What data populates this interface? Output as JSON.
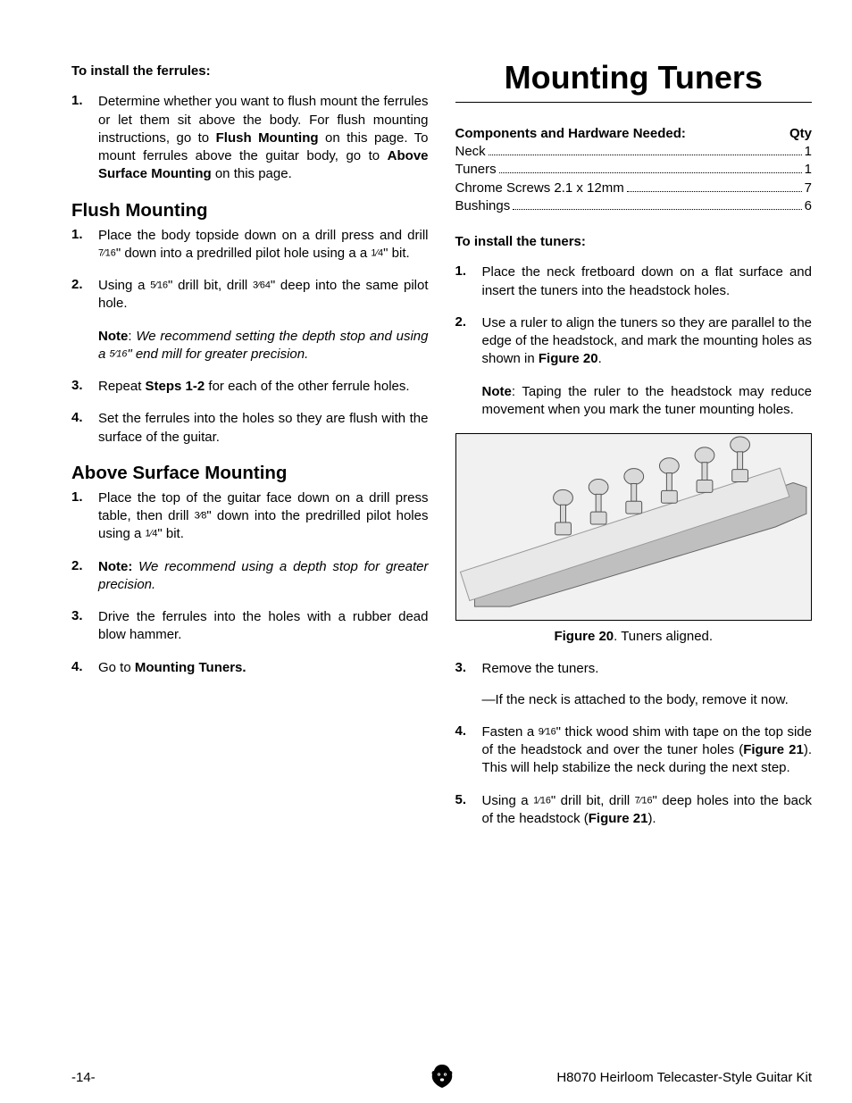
{
  "left": {
    "install_ferrules_heading": "To install the ferrules:",
    "intro_step_num": "1.",
    "intro_step": "Determine whether you want to flush mount the ferrules or let them sit above the body. For flush mounting instructions, go to <b>Flush Mounting</b> on this page. To mount ferrules above the guitar body, go to <b>Above Surface Mounting</b> on this page.",
    "flush_heading": "Flush Mounting",
    "flush_steps": [
      {
        "num": "1.",
        "html": "Place the body topside down on a drill press and drill <span class='frac'>7⁄16</span>\" down into a predrilled pilot hole using a  a <span class='frac'>1⁄4</span>\" bit."
      },
      {
        "num": "2.",
        "html": "Using a <span class='frac'>5⁄16</span>\" drill bit, drill <span class='frac'>3⁄64</span>\" deep into the same pilot hole.",
        "note": "<b>Note</b>: <i>We recommend setting the depth stop and using a <span class='frac'>5⁄16</span>\" end mill for greater precision.</i>"
      },
      {
        "num": "3.",
        "html": "Repeat <b>Steps 1-2</b> for each of the other ferrule holes."
      },
      {
        "num": "4.",
        "html": "Set the ferrules into the holes so they are flush with the surface of the guitar."
      }
    ],
    "above_heading": "Above Surface Mounting",
    "above_steps": [
      {
        "num": "1.",
        "html": "Place the top of the guitar face down on a drill press table, then drill <span class='frac'>3⁄8</span>\" down into the predrilled pilot holes using a <span class='frac'>1⁄4</span>\" bit."
      },
      {
        "num": "2.",
        "html": "<b>Note:</b> <i>We recommend using a depth stop for greater precision.</i>"
      },
      {
        "num": "3.",
        "html": "Drive the ferrules into the holes with a rubber dead blow hammer."
      },
      {
        "num": "4.",
        "html": "Go to <b>Mounting Tuners.</b>"
      }
    ]
  },
  "right": {
    "title": "Mounting Tuners",
    "comp_header_label": "Components and Hardware Needed:",
    "comp_header_qty": "Qty",
    "components": [
      {
        "name": "Neck",
        "qty": "1"
      },
      {
        "name": "Tuners",
        "qty": "1"
      },
      {
        "name": "Chrome Screws 2.1 x 12mm",
        "qty": "7"
      },
      {
        "name": "Bushings",
        "qty": "6"
      }
    ],
    "install_tuners_heading": "To install the tuners:",
    "steps": [
      {
        "num": "1.",
        "html": "Place the neck fretboard down on a flat surface and insert the tuners into the headstock holes."
      },
      {
        "num": "2.",
        "html": "Use a ruler to align the tuners so they are parallel to the edge of the headstock, and mark the mounting holes as shown in <b>Figure 20</b>.",
        "note": "<b>Note</b>: Taping the ruler to the headstock may reduce movement when you mark the tuner mounting holes."
      }
    ],
    "figure_caption_label": "Figure 20",
    "figure_caption_text": ". Tuners aligned.",
    "steps_after": [
      {
        "num": "3.",
        "html": "Remove the tuners.",
        "sub": "—If the neck is attached to the body, remove it now."
      },
      {
        "num": "4.",
        "html": "Fasten a <span class='frac'>9⁄16</span>\" thick wood shim with tape on the top side of the headstock and over the tuner holes (<b>Figure 21</b>). This will help stabilize the neck during the next step."
      },
      {
        "num": "5.",
        "html": "Using a <span class='frac'>1⁄16</span>\" drill bit, drill <span class='frac'>7⁄16</span>\" deep holes into the back of the headstock (<b>Figure 21</b>)."
      }
    ]
  },
  "footer": {
    "page": "-14-",
    "doc": "H8070 Heirloom Telecaster-Style Guitar Kit"
  },
  "colors": {
    "text": "#000000",
    "bg": "#ffffff",
    "figure_bg": "#f1f1f1"
  }
}
